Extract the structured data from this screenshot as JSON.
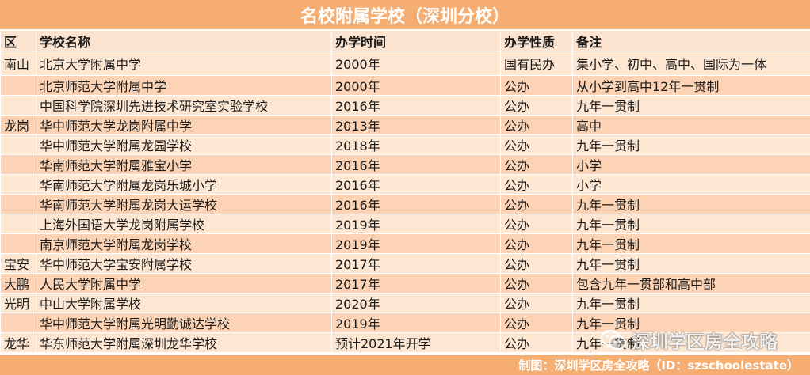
{
  "title": "名校附属学校（深圳分校）",
  "table": {
    "headers": [
      "区",
      "学校名称",
      "办学时间",
      "办学性质",
      "备注"
    ],
    "rows": [
      {
        "district": "南山",
        "name": "北京大学附属中学",
        "year": "2000年",
        "type": "国有民办",
        "note": "集小学、初中、高中、国际为一体"
      },
      {
        "district": "",
        "name": "北京师范大学附属中学",
        "year": "2000年",
        "type": "公办",
        "note": "从小学到高中12年一贯制"
      },
      {
        "district": "",
        "name": "中国科学院深圳先进技术研究室实验学校",
        "year": "2016年",
        "type": "公办",
        "note": "九年一贯制"
      },
      {
        "district": "龙岗",
        "name": "华中师范大学龙岗附属中学",
        "year": "2013年",
        "type": "公办",
        "note": "高中"
      },
      {
        "district": "",
        "name": "华中师范大学附属龙园学校",
        "year": "2018年",
        "type": "公办",
        "note": "九年一贯制"
      },
      {
        "district": "",
        "name": "华南师范大学附属雅宝小学",
        "year": "2016年",
        "type": "公办",
        "note": "小学"
      },
      {
        "district": "",
        "name": "华南师范大学附属龙岗乐城小学",
        "year": "2016年",
        "type": "公办",
        "note": "小学"
      },
      {
        "district": "",
        "name": "华南师范大学附属龙岗大运学校",
        "year": "2016年",
        "type": "公办",
        "note": "九年一贯制"
      },
      {
        "district": "",
        "name": "上海外国语大学龙岗附属学校",
        "year": "2019年",
        "type": "公办",
        "note": "九年一贯制"
      },
      {
        "district": "",
        "name": "南京师范大学附属龙岗学校",
        "year": "2019年",
        "type": "公办",
        "note": "九年一贯制"
      },
      {
        "district": "宝安",
        "name": "华中师范大学宝安附属学校",
        "year": "2017年",
        "type": "公办",
        "note": "九年一贯制"
      },
      {
        "district": "大鹏",
        "name": "人民大学附属中学",
        "year": "2017年",
        "type": "公办",
        "note": "包含九年一贯部和高中部"
      },
      {
        "district": "光明",
        "name": "中山大学附属学校",
        "year": "2020年",
        "type": "公办",
        "note": "九年一贯制"
      },
      {
        "district": "",
        "name": "华中师范大学附属光明勤诚达学校",
        "year": "2019年",
        "type": "公办",
        "note": "九年一贯制"
      },
      {
        "district": "龙华",
        "name": "华东师范大学附属深圳龙华学校",
        "year": "预计2021年开学",
        "type": "公办",
        "note": "九年一贯制"
      }
    ]
  },
  "footer": "制图：深圳学区房全攻略（ID：szschoolestate）",
  "watermark": {
    "text": "深圳学区房全攻略",
    "icon": "wechat-icon"
  },
  "colors": {
    "header_orange": "#f5ad72",
    "row_light": "#fde6d2",
    "row_dark": "#fcd3b4"
  }
}
